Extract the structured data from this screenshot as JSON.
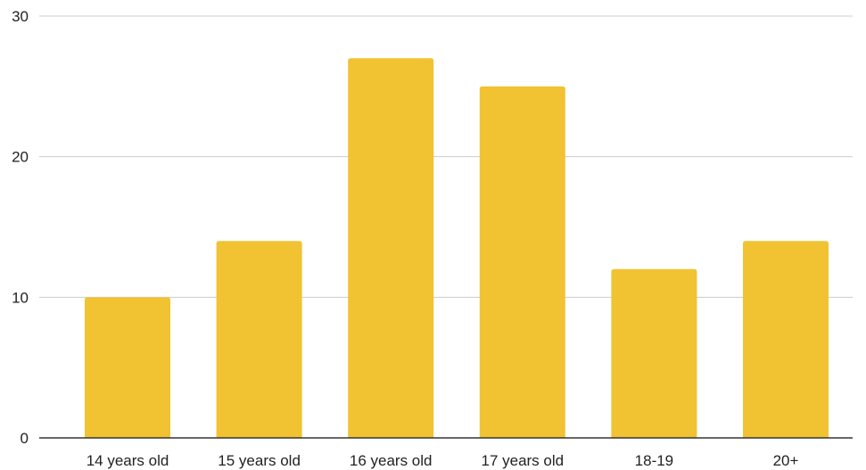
{
  "chart_data": {
    "type": "bar",
    "title": "",
    "xlabel": "",
    "ylabel": "",
    "categories": [
      "14 years old",
      "15 years old",
      "16 years old",
      "17 years old",
      "18-19",
      "20+"
    ],
    "values": [
      10,
      14,
      27,
      25,
      12,
      14
    ],
    "ylim": [
      0,
      30
    ],
    "yticks": [
      0,
      10,
      20,
      30
    ],
    "grid": true,
    "legend": "none",
    "bar_color": "#F1C232",
    "grid_color": "#CCCCCC",
    "axis_color": "#333333"
  }
}
